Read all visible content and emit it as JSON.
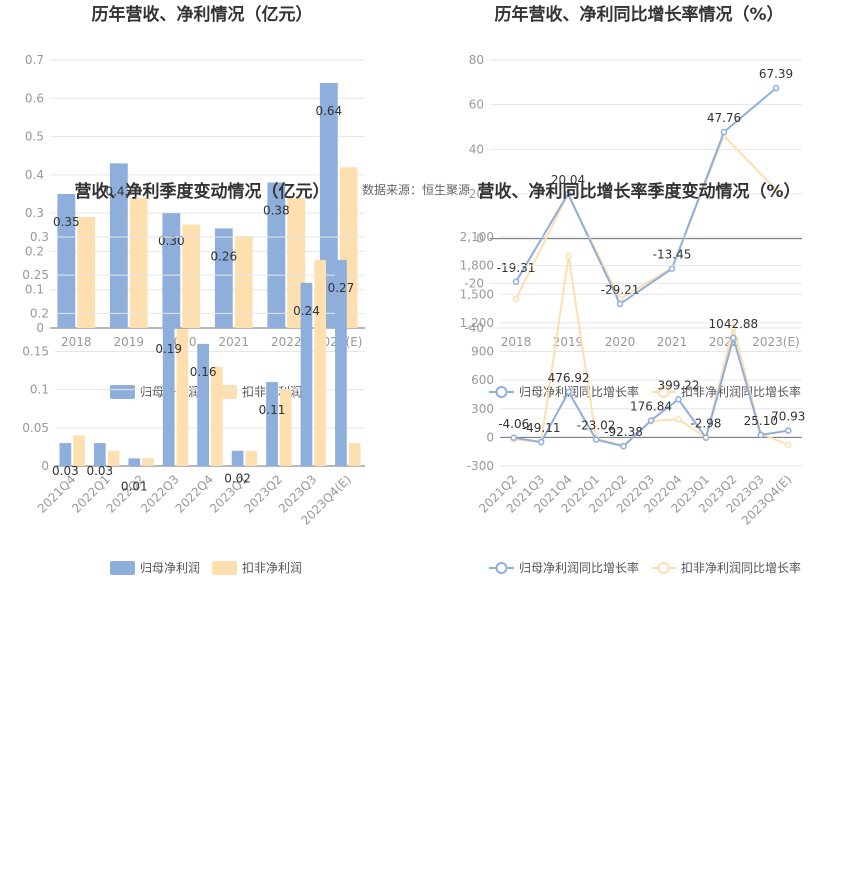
{
  "chart_data": [
    {
      "id": "annual-bar",
      "type": "bar",
      "title": "历年营收、净利情况（亿元）",
      "categories": [
        "2018",
        "2019",
        "2020",
        "2021",
        "2022",
        "2023(E)"
      ],
      "series": [
        {
          "name": "归母净利润",
          "values": [
            0.35,
            0.43,
            0.3,
            0.26,
            0.38,
            0.64
          ],
          "color": "#8eaedc",
          "labels": [
            "0.35",
            "0.43",
            "0.30",
            "0.26",
            "0.38",
            "0.64"
          ]
        },
        {
          "name": "扣非净利润",
          "values": [
            0.29,
            0.34,
            0.27,
            0.24,
            0.34,
            0.42
          ],
          "color": "#fddfb0"
        }
      ],
      "yticks": [
        "0",
        "0.1",
        "0.2",
        "0.3",
        "0.4",
        "0.5",
        "0.6",
        "0.7"
      ],
      "ylim": [
        0,
        0.7
      ]
    },
    {
      "id": "annual-line",
      "type": "line",
      "title": "历年营收、净利同比增长率情况（%）",
      "categories": [
        "2018",
        "2019",
        "2020",
        "2021",
        "2022",
        "2023(E)"
      ],
      "series": [
        {
          "name": "归母净利润同比增长率",
          "values": [
            -19.31,
            20.04,
            -29.21,
            -13.45,
            47.76,
            67.39
          ],
          "color": "#8eaedc",
          "labels": [
            "-19.31",
            "20.04",
            "-29.21",
            "-13.45",
            "47.76",
            "67.39"
          ]
        },
        {
          "name": "扣非净利润同比增长率",
          "values": [
            -27,
            20,
            -27,
            -13,
            46,
            22
          ],
          "color": "#fddfb0"
        }
      ],
      "yticks": [
        "-40",
        "-20",
        "0",
        "20",
        "40",
        "60",
        "80"
      ],
      "ylim": [
        -40,
        80
      ]
    },
    {
      "id": "quarter-bar",
      "type": "bar",
      "title": "营收、净利季度变动情况（亿元）",
      "categories": [
        "2021Q4",
        "2022Q1",
        "2022Q2",
        "2022Q3",
        "2022Q4",
        "2023Q1",
        "2023Q2",
        "2023Q3",
        "2023Q4(E)"
      ],
      "series": [
        {
          "name": "归母净利润",
          "values": [
            0.03,
            0.03,
            0.01,
            0.19,
            0.16,
            0.02,
            0.11,
            0.24,
            0.27
          ],
          "color": "#8eaedc",
          "labels": [
            "0.03",
            "0.03",
            "0.01",
            "0.19",
            "0.16",
            "0.02",
            "0.11",
            "0.24",
            "0.27"
          ]
        },
        {
          "name": "扣非净利润",
          "values": [
            0.04,
            0.02,
            0.01,
            0.18,
            0.13,
            0.02,
            0.1,
            0.27,
            0.03
          ],
          "color": "#fddfb0"
        }
      ],
      "yticks": [
        "0",
        "0.05",
        "0.1",
        "0.15",
        "0.2",
        "0.25",
        "0.3"
      ],
      "ylim": [
        0,
        0.3
      ]
    },
    {
      "id": "quarter-line",
      "type": "line",
      "title": "营收、净利同比增长率季度变动情况（%）",
      "categories": [
        "2021Q2",
        "2021Q3",
        "2021Q4",
        "2022Q1",
        "2022Q2",
        "2022Q3",
        "2022Q4",
        "2023Q1",
        "2023Q2",
        "2023Q3",
        "2023Q4(E)"
      ],
      "series": [
        {
          "name": "归母净利润同比增长率",
          "values": [
            -4.06,
            -49.11,
            476.92,
            -23.02,
            -92.38,
            176.84,
            399.22,
            -2.98,
            1042.88,
            25.1,
            70.93
          ],
          "color": "#8eaedc",
          "labels": [
            "-4.06",
            "-49.11",
            "476.92",
            "-23.02",
            "-92.38",
            "176.84",
            "399.22",
            "-2.98",
            "1042.88",
            "25.10",
            "70.93"
          ]
        },
        {
          "name": "扣非净利润同比增长率",
          "values": [
            -20,
            -50,
            1900,
            -10,
            -90,
            170,
            190,
            -5,
            1150,
            40,
            -80
          ],
          "color": "#fddfb0"
        }
      ],
      "yticks": [
        "-300",
        "0",
        "300",
        "600",
        "900",
        "1,200",
        "1,500",
        "1,800",
        "2,100"
      ],
      "ylim": [
        -300,
        2100
      ]
    }
  ],
  "source_text": "数据来源：恒生聚源",
  "legend": {
    "bar": [
      "归母净利润",
      "扣非净利润"
    ],
    "line": [
      "归母净利润同比增长率",
      "扣非净利润同比增长率"
    ]
  }
}
